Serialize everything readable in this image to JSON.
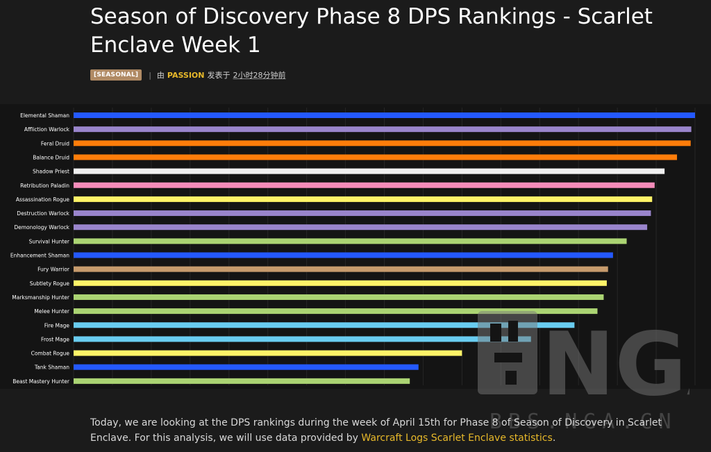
{
  "article": {
    "title": "Season of Discovery Phase 8 DPS Rankings - Scarlet Enclave Week 1",
    "tag": "[SEASONAL]",
    "separator": "|",
    "by": "由",
    "author": "PASSION",
    "posted": "发表于",
    "time": "2小时28分钟前",
    "intro": "Today, we are looking at the DPS rankings during the week of April 15th for Phase 8 of Season of Discovery in Scarlet Enclave. For this analysis, we will use data provided by ",
    "link_text": "Warcraft Logs Scarlet Enclave statistics",
    "intro_end": "."
  },
  "watermark": {
    "text": "BBS.NGA.CN",
    "logo": "NGA"
  },
  "colors": {
    "shaman": "#2459ff",
    "warlock": "#9a85cc",
    "druid": "#ff7d0a",
    "priest": "#f0f0f0",
    "paladin": "#f58cba",
    "rogue": "#fff468",
    "hunter": "#abd473",
    "warrior": "#c69b6d",
    "mage": "#69ccf0",
    "link": "#e8b92a"
  },
  "chart_data": {
    "type": "bar",
    "orientation": "horizontal",
    "title": "",
    "xlabel": "",
    "ylabel": "",
    "xlim": [
      0,
      100
    ],
    "grid": true,
    "categories": [
      "Elemental Shaman",
      "Affliction Warlock",
      "Feral Druid",
      "Balance Druid",
      "Shadow Priest",
      "Retribution Paladin",
      "Assassination Rogue",
      "Destruction Warlock",
      "Demonology Warlock",
      "Survival Hunter",
      "Enhancement Shaman",
      "Fury Warrior",
      "Subtlety Rogue",
      "Marksmanship Hunter",
      "Melee Hunter",
      "Fire Mage",
      "Frost Mage",
      "Combat Rogue",
      "Tank Shaman",
      "Beast Mastery Hunter"
    ],
    "values": [
      100,
      99.4,
      99.3,
      97.1,
      95.1,
      93.5,
      93.1,
      92.9,
      92.3,
      89.0,
      86.8,
      86.0,
      85.8,
      85.3,
      84.3,
      80.6,
      73.6,
      62.5,
      55.5,
      54.1
    ],
    "classes": [
      "shaman",
      "warlock",
      "druid",
      "druid",
      "priest",
      "paladin",
      "rogue",
      "warlock",
      "warlock",
      "hunter",
      "shaman",
      "warrior",
      "rogue",
      "hunter",
      "hunter",
      "mage",
      "mage",
      "rogue",
      "shaman",
      "hunter"
    ]
  }
}
